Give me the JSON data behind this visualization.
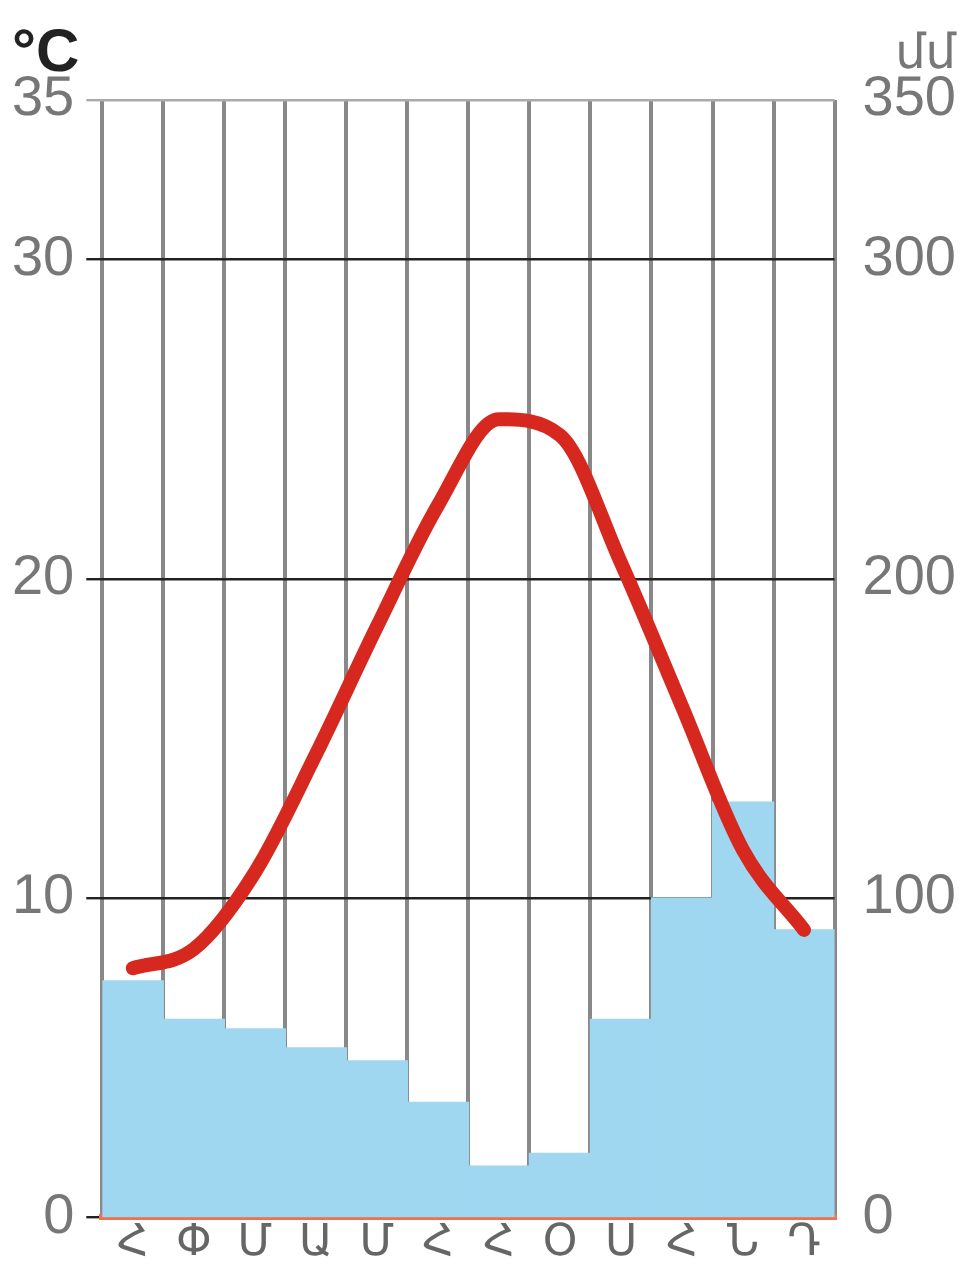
{
  "chart_data": {
    "type": "bar",
    "ylabel": "°C",
    "y2label": "մմ",
    "categories": [
      "Հ",
      "Փ",
      "Մ",
      "Ա",
      "Մ",
      "Հ",
      "Հ",
      "Օ",
      "Ս",
      "Հ",
      "Ն",
      "Դ"
    ],
    "series": [
      {
        "axis": "y2",
        "color": "#9fd6f0",
        "values": [
          74,
          62,
          59,
          53,
          49,
          36,
          16,
          20,
          62,
          100,
          130,
          90
        ]
      },
      {
        "type": "line",
        "axis": "y",
        "color": "#d6281e",
        "values": [
          7.8,
          8.4,
          10.8,
          14.5,
          18.5,
          22.3,
          25,
          24.5,
          20.5,
          16,
          11.5,
          9
        ]
      }
    ],
    "ylim": [
      0,
      35
    ],
    "yticks": [
      0,
      10,
      20,
      30,
      35
    ],
    "y2lim": [
      0,
      350
    ],
    "y2ticks": [
      0,
      100,
      200,
      300,
      350
    ],
    "grid": true,
    "legend": false,
    "marker": "none",
    "line_style": "solid"
  }
}
